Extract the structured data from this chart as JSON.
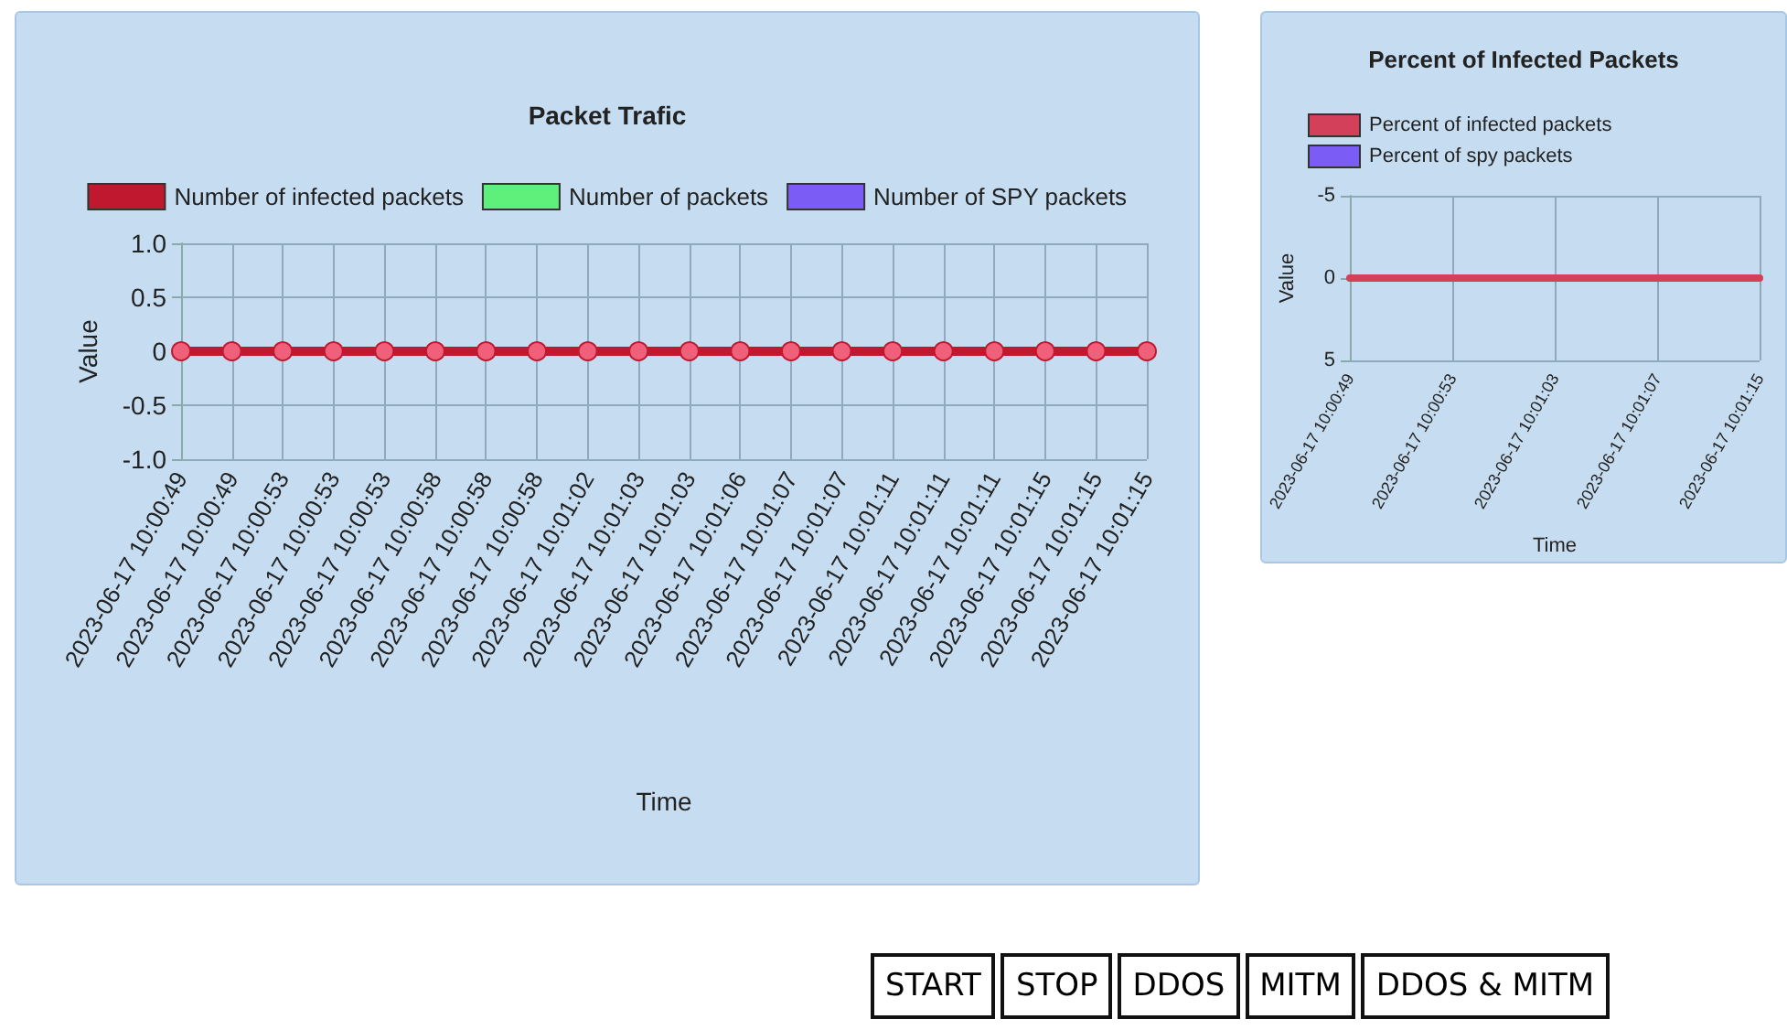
{
  "chart_data": [
    {
      "type": "line",
      "title": "Packet Trafic",
      "xlabel": "Time",
      "ylabel": "Value",
      "legend": "top",
      "grid": true,
      "marker": "circle",
      "line_style": "solid",
      "categories": [
        "2023-06-17 10:00:49",
        "2023-06-17 10:00:49",
        "2023-06-17 10:00:53",
        "2023-06-17 10:00:53",
        "2023-06-17 10:00:53",
        "2023-06-17 10:00:58",
        "2023-06-17 10:00:58",
        "2023-06-17 10:00:58",
        "2023-06-17 10:01:02",
        "2023-06-17 10:01:03",
        "2023-06-17 10:01:03",
        "2023-06-17 10:01:06",
        "2023-06-17 10:01:07",
        "2023-06-17 10:01:07",
        "2023-06-17 10:01:11",
        "2023-06-17 10:01:11",
        "2023-06-17 10:01:11",
        "2023-06-17 10:01:15",
        "2023-06-17 10:01:15",
        "2023-06-17 10:01:15"
      ],
      "ylim": [
        -1,
        1
      ],
      "yticks": [
        {
          "value": -1,
          "label": "-1.0"
        },
        -0.5,
        0,
        0.5,
        {
          "value": 1,
          "label": "1.0"
        }
      ],
      "series": [
        {
          "name": "Number of infected packets",
          "color": "#c0182e",
          "values": [
            0,
            0,
            0,
            0,
            0,
            0,
            0,
            0,
            0,
            0,
            0,
            0,
            0,
            0,
            0,
            0,
            0,
            0,
            0,
            0
          ]
        },
        {
          "name": "Number of packets",
          "color": "#5ef07a",
          "values": [
            null,
            null,
            null,
            null,
            null,
            null,
            null,
            null,
            null,
            null,
            null,
            null,
            null,
            null,
            null,
            null,
            null,
            null,
            null,
            null
          ]
        },
        {
          "name": "Number of SPY packets",
          "color": "#7b5cf5",
          "values": [
            null,
            null,
            null,
            null,
            null,
            null,
            null,
            null,
            null,
            null,
            null,
            null,
            null,
            null,
            null,
            null,
            null,
            null,
            null,
            null
          ]
        }
      ]
    },
    {
      "type": "line",
      "title": "Percent of Infected Packets",
      "xlabel": "Time",
      "ylabel": "Value",
      "legend": "top left",
      "grid": true,
      "marker": "none",
      "line_style": "solid",
      "categories": [
        "2023-06-17 10:00:49",
        "2023-06-17 10:00:53",
        "2023-06-17 10:01:03",
        "2023-06-17 10:01:07",
        "2023-06-17 10:01:15"
      ],
      "ylim": [
        5,
        -5
      ],
      "yticks": [
        -5,
        0,
        5
      ],
      "series": [
        {
          "name": "Percent of infected packets",
          "color": "#d2405a",
          "values": [
            0,
            0,
            0,
            0,
            0
          ]
        },
        {
          "name": "Percent of spy packets",
          "color": "#7b5cf5",
          "values": [
            null,
            null,
            null,
            null,
            null
          ]
        }
      ]
    },
    {
      "type": "other",
      "annotations": [
        "START",
        "STOP",
        "DDOS",
        "MITM",
        "DDOS & MITM"
      ]
    }
  ]
}
